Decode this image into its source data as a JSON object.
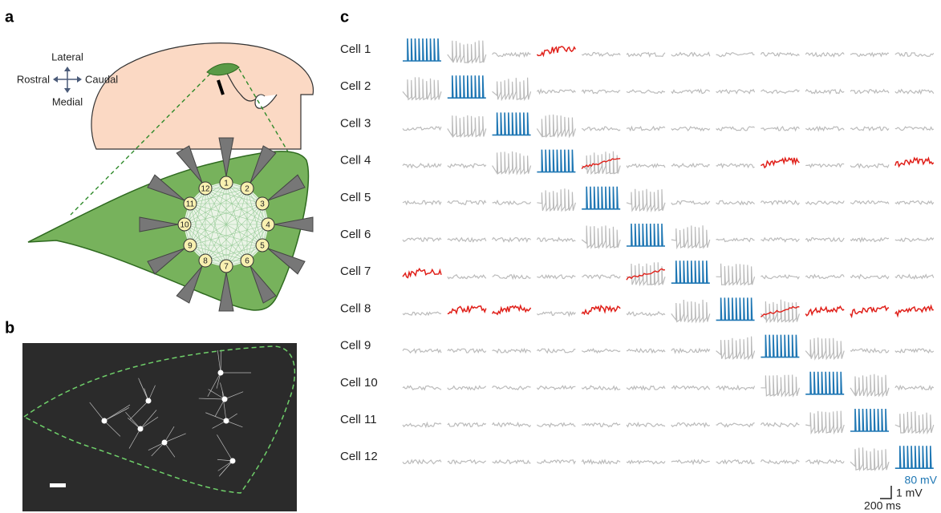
{
  "panel_a": {
    "label": "a",
    "orientation": {
      "lateral": "Lateral",
      "medial": "Medial",
      "rostral": "Rostral",
      "caudal": "Caudal"
    },
    "electrodes": [
      1,
      2,
      3,
      4,
      5,
      6,
      7,
      8,
      9,
      10,
      11,
      12
    ]
  },
  "panel_b": {
    "label": "b"
  },
  "panel_c": {
    "label": "c",
    "cells": [
      "Cell 1",
      "Cell 2",
      "Cell 3",
      "Cell 4",
      "Cell 5",
      "Cell 6",
      "Cell 7",
      "Cell 8",
      "Cell 9",
      "Cell 10",
      "Cell 11",
      "Cell 12"
    ],
    "scale": {
      "stim": "80 mV",
      "response": "1 mV",
      "time": "200 ms"
    }
  }
}
